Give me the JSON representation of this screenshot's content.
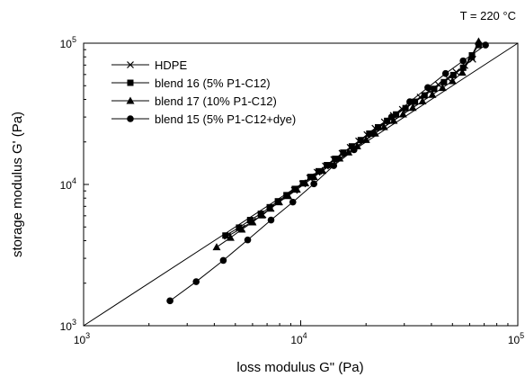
{
  "chart_data": {
    "type": "scatter",
    "annotation": "T = 220 °C",
    "xlabel": "loss modulus G\" (Pa)",
    "ylabel": "storage modulus G' (Pa)",
    "xscale": "log",
    "yscale": "log",
    "xlim": [
      1000,
      100000
    ],
    "ylim": [
      1000,
      100000
    ],
    "xticks": [
      {
        "value": 1000,
        "base": "10",
        "exp": "3"
      },
      {
        "value": 10000,
        "base": "10",
        "exp": "4"
      },
      {
        "value": 100000,
        "base": "10",
        "exp": "5"
      }
    ],
    "yticks": [
      {
        "value": 1000,
        "base": "10",
        "exp": "3"
      },
      {
        "value": 10000,
        "base": "10",
        "exp": "4"
      },
      {
        "value": 100000,
        "base": "10",
        "exp": "5"
      }
    ],
    "grid": false,
    "legend_position": "top-left",
    "reference_line": {
      "x": [
        1000,
        100000
      ],
      "y": [
        1000,
        100000
      ]
    },
    "series": [
      {
        "name": "HDPE",
        "marker": "x",
        "x": [
          4600,
          5350,
          6000,
          6700,
          7300,
          7900,
          8650,
          9350,
          10200,
          11000,
          11900,
          13000,
          14200,
          15500,
          16900,
          18500,
          20200,
          22000,
          24300,
          26700,
          29400,
          32400,
          35500,
          39000,
          43000,
          47500,
          52000,
          57000,
          62000
        ],
        "y": [
          4300,
          4900,
          5500,
          6100,
          6800,
          7500,
          8300,
          9100,
          10100,
          11100,
          12200,
          13500,
          15000,
          16600,
          18300,
          20300,
          22500,
          25000,
          27700,
          30800,
          34000,
          37500,
          41500,
          46000,
          51000,
          56500,
          62500,
          69500,
          77000
        ]
      },
      {
        "name": "blend 16 (5% P1-C12)",
        "marker": "square",
        "x": [
          4500,
          5200,
          5850,
          6550,
          7200,
          7850,
          8600,
          9400,
          10250,
          11100,
          12100,
          13200,
          14400,
          15700,
          17200,
          18900,
          20700,
          22700,
          25000,
          27500,
          30400,
          33600,
          37200,
          41200,
          45700,
          50500,
          56000,
          61500,
          66000
        ],
        "y": [
          4350,
          4950,
          5600,
          6200,
          6900,
          7600,
          8400,
          9300,
          10200,
          11300,
          12400,
          13700,
          15200,
          16800,
          18600,
          20600,
          22900,
          25400,
          28200,
          31300,
          34700,
          38500,
          42700,
          47500,
          53000,
          59500,
          67000,
          82000,
          97000
        ]
      },
      {
        "name": "blend 17 (10% P1-C12)",
        "marker": "triangle",
        "x": [
          4100,
          4750,
          5350,
          6000,
          6600,
          7250,
          7950,
          8750,
          9600,
          10500,
          11500,
          12600,
          13800,
          15100,
          16600,
          18200,
          20000,
          22000,
          24200,
          26800,
          29600,
          32800,
          36400,
          40400,
          45000,
          50000,
          55500,
          61000,
          66000
        ],
        "y": [
          3600,
          4200,
          4800,
          5400,
          6050,
          6750,
          7500,
          8300,
          9200,
          10200,
          11300,
          12500,
          13800,
          15300,
          16900,
          18700,
          20700,
          23000,
          25500,
          28300,
          31400,
          34900,
          38800,
          43200,
          48300,
          54000,
          62000,
          80000,
          103000
        ]
      },
      {
        "name": "blend 15 (5% P1-C12+dye)",
        "marker": "circle",
        "x": [
          2500,
          3300,
          4400,
          5700,
          7300,
          9200,
          11500,
          14200,
          17600,
          21500,
          26200,
          31800,
          38500,
          46500,
          56000,
          71000
        ],
        "y": [
          1500,
          2050,
          2900,
          4050,
          5600,
          7500,
          10100,
          13600,
          17600,
          23000,
          30000,
          38500,
          48500,
          61000,
          75000,
          97000
        ]
      }
    ]
  }
}
